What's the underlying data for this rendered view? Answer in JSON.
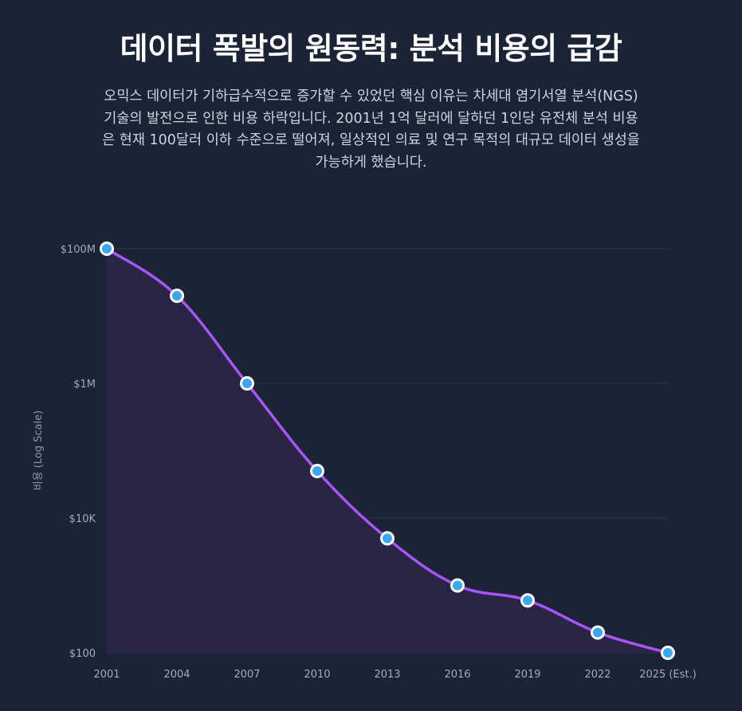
{
  "header": {
    "title": "데이터 폭발의 원동력: 분석 비용의 급감",
    "subtitle_lines": [
      "오믹스 데이터가 기하급수적으로 증가할 수 있었던 핵심 이유는 차세대 염기서열 분석(NGS)",
      "기술의 발전으로 인한 비용 하락입니다. 2001년 1억 달러에 달하던 1인당 유전체 분석 비용",
      "은 현재 100달러 이하 수준으로 떨어져, 일상적인 의료 및 연구 목적의 대규모 데이터 생성을",
      "가능하게 했습니다."
    ]
  },
  "colors": {
    "background": "#1b2336",
    "line": "#a855f7",
    "area_fill": "#2a2545",
    "point_fill": "#3ba7ee",
    "point_stroke": "#ffffff",
    "grid": "#2c3548"
  },
  "chart_data": {
    "type": "line",
    "x": [
      "2001",
      "2004",
      "2007",
      "2010",
      "2013",
      "2016",
      "2019",
      "2022",
      "2025 (Est.)"
    ],
    "series": [
      {
        "values": [
          100000000,
          20000000,
          1000000,
          50000,
          5000,
          1000,
          600,
          200,
          100
        ]
      }
    ],
    "ylabel": "비용 (Log Scale)",
    "yscale": "log",
    "ylim": [
      100,
      100000000
    ],
    "yticks": [
      {
        "value": 100000000,
        "label": "$100M"
      },
      {
        "value": 1000000,
        "label": "$1M"
      },
      {
        "value": 10000,
        "label": "$10K"
      },
      {
        "value": 100,
        "label": "$100"
      }
    ],
    "grid": true,
    "area_fill": true,
    "legend": "none"
  }
}
